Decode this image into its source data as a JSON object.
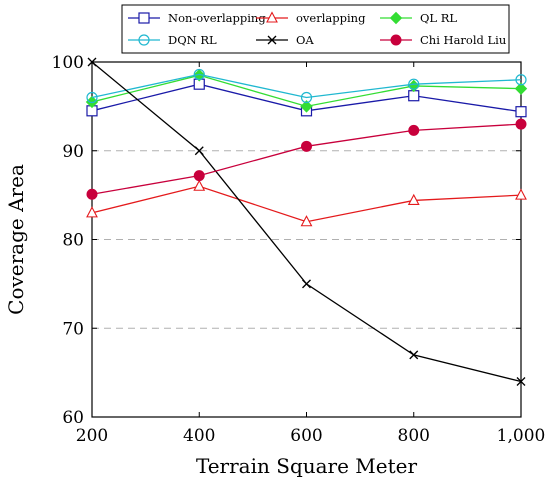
{
  "chart_data": {
    "type": "line",
    "title": "",
    "xlabel": "Terrain Square Meter",
    "ylabel": "Coverage Area",
    "x": [
      200,
      400,
      600,
      800,
      1000
    ],
    "x_tick_labels": [
      "200",
      "400",
      "600",
      "800",
      "1,000"
    ],
    "xlim": [
      200,
      1000
    ],
    "ylim": [
      60,
      100
    ],
    "y_ticks": [
      60,
      70,
      80,
      90,
      100
    ],
    "y_tick_labels": [
      "60",
      "70",
      "80",
      "90",
      "100"
    ],
    "grid": "horizontal dashed",
    "legend_position": "top",
    "series": [
      {
        "name": "Non-overlapping",
        "color": "#1a1aa8",
        "marker": "square",
        "values": [
          94.5,
          97.5,
          94.5,
          96.2,
          94.4
        ]
      },
      {
        "name": "overlapping",
        "color": "#e41a1c",
        "marker": "triangle",
        "values": [
          83.0,
          86.0,
          82.0,
          84.4,
          85.0
        ]
      },
      {
        "name": "QL RL",
        "color": "#33dd33",
        "marker": "diamond",
        "values": [
          95.5,
          98.5,
          95.0,
          97.3,
          97.0
        ]
      },
      {
        "name": "DQN RL",
        "color": "#20b8d0",
        "marker": "circle",
        "values": [
          96.0,
          98.6,
          96.0,
          97.5,
          98.0
        ]
      },
      {
        "name": "OA",
        "color": "#000000",
        "marker": "x",
        "values": [
          100.0,
          90.0,
          75.0,
          67.0,
          64.0
        ]
      },
      {
        "name": "Chi Harold Liu",
        "color": "#c8003c",
        "marker": "filled-circle",
        "values": [
          85.1,
          87.2,
          90.5,
          92.3,
          93.0
        ]
      }
    ]
  }
}
